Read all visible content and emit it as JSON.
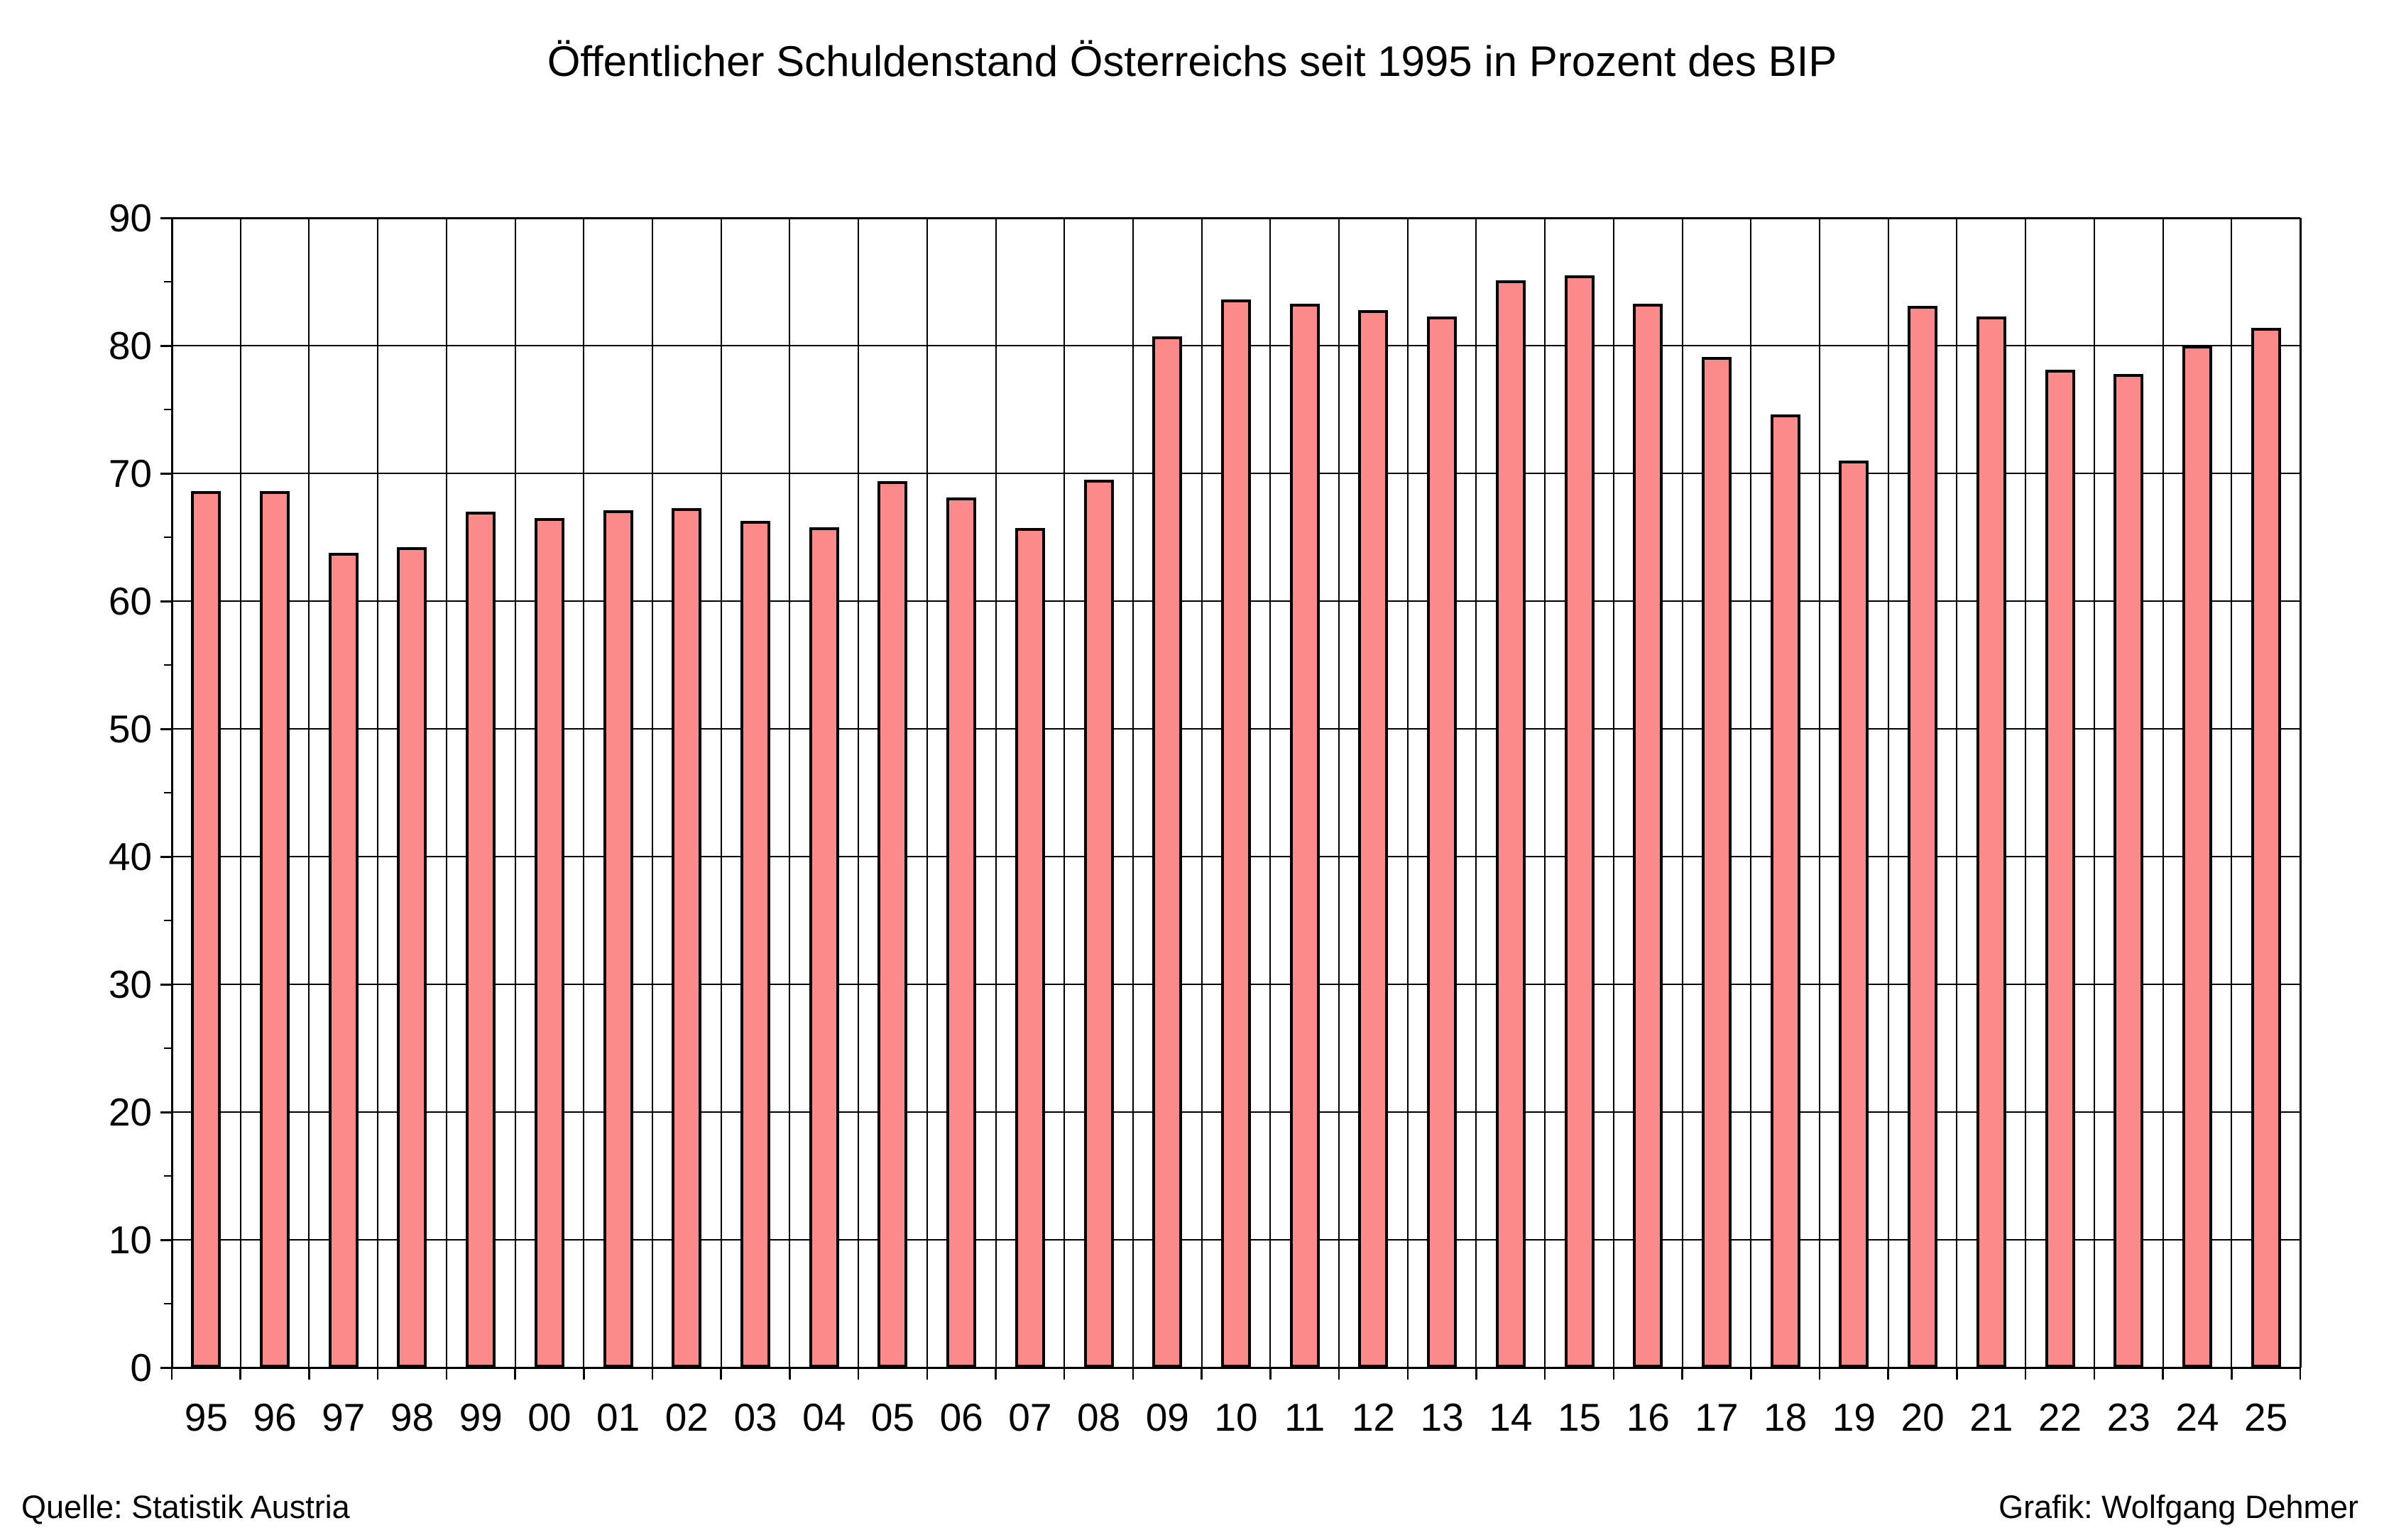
{
  "title": "Öffentlicher Schuldenstand Österreichs seit 1995 in Prozent des BIP",
  "source": "Quelle: Statistik Austria",
  "credit": "Grafik: Wolfgang Dehmer",
  "colors": {
    "bar_fill": "#fc8a8a",
    "bar_border": "#000000",
    "grid": "#000000",
    "text": "#000000",
    "background": "#ffffff"
  },
  "chart_data": {
    "type": "bar",
    "title": "Öffentlicher Schuldenstand Österreichs seit 1995 in Prozent des BIP",
    "categories": [
      "95",
      "96",
      "97",
      "98",
      "99",
      "00",
      "01",
      "02",
      "03",
      "04",
      "05",
      "06",
      "07",
      "08",
      "09",
      "10",
      "11",
      "12",
      "13",
      "14",
      "15",
      "16",
      "17",
      "18",
      "19",
      "20",
      "21",
      "22",
      "23",
      "24",
      "25"
    ],
    "values": [
      68.6,
      68.6,
      63.8,
      64.2,
      67.0,
      66.5,
      67.1,
      67.3,
      66.3,
      65.8,
      69.4,
      68.1,
      65.7,
      69.5,
      80.7,
      83.6,
      83.3,
      82.8,
      82.3,
      85.1,
      85.5,
      83.3,
      79.1,
      74.6,
      71.0,
      83.1,
      82.3,
      78.1,
      77.8,
      80.0,
      81.4
    ],
    "xlabel": "",
    "ylabel": "",
    "ylim": [
      0,
      90
    ],
    "ytick_step": 10,
    "ytick_labels": [
      "0",
      "10",
      "20",
      "30",
      "40",
      "50",
      "60",
      "70",
      "80",
      "90"
    ],
    "yminortick_step": 5,
    "grid": "both",
    "legend": "none"
  }
}
